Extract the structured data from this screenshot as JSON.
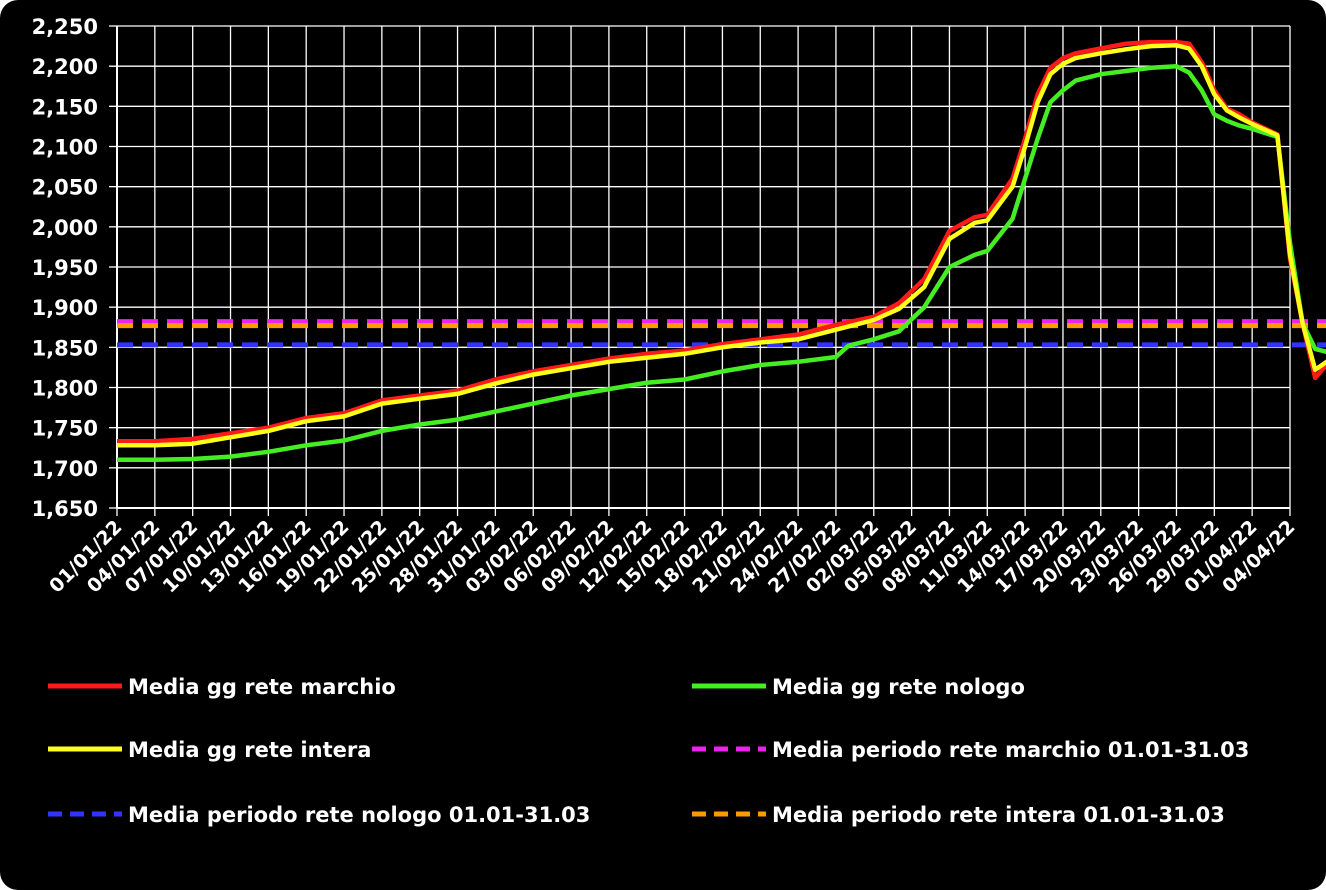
{
  "chart_data": {
    "type": "line",
    "ylim": [
      1650,
      2250
    ],
    "yticks": [
      "1,650",
      "1,700",
      "1,750",
      "1,800",
      "1,850",
      "1,900",
      "1,950",
      "2,000",
      "2,050",
      "2,100",
      "2,150",
      "2,200",
      "2,250"
    ],
    "xticks": [
      "01/01/22",
      "04/01/22",
      "07/01/22",
      "10/01/22",
      "13/01/22",
      "16/01/22",
      "19/01/22",
      "22/01/22",
      "25/01/22",
      "28/01/22",
      "31/01/22",
      "03/02/22",
      "06/02/22",
      "09/02/22",
      "12/02/22",
      "15/02/22",
      "18/02/22",
      "21/02/22",
      "24/02/22",
      "27/02/22",
      "02/03/22",
      "05/03/22",
      "08/03/22",
      "11/03/22",
      "14/03/22",
      "17/03/22",
      "20/03/22",
      "23/03/22",
      "26/03/22",
      "29/03/22",
      "01/04/22",
      "04/04/22"
    ],
    "grid": true,
    "legend_position": "bottom",
    "series": [
      {
        "name": "Media gg rete marchio",
        "color": "#ff1a1a",
        "style": "solid",
        "points": [
          [
            0,
            1733
          ],
          [
            3,
            1733
          ],
          [
            6,
            1736
          ],
          [
            9,
            1743
          ],
          [
            12,
            1750
          ],
          [
            15,
            1762
          ],
          [
            18,
            1768
          ],
          [
            21,
            1784
          ],
          [
            24,
            1790
          ],
          [
            27,
            1796
          ],
          [
            30,
            1810
          ],
          [
            33,
            1820
          ],
          [
            36,
            1828
          ],
          [
            39,
            1836
          ],
          [
            42,
            1842
          ],
          [
            45,
            1846
          ],
          [
            48,
            1854
          ],
          [
            51,
            1860
          ],
          [
            54,
            1866
          ],
          [
            57,
            1878
          ],
          [
            60,
            1888
          ],
          [
            62,
            1905
          ],
          [
            64,
            1935
          ],
          [
            66,
            1995
          ],
          [
            68,
            2012
          ],
          [
            69,
            2015
          ],
          [
            71,
            2060
          ],
          [
            72,
            2110
          ],
          [
            73,
            2165
          ],
          [
            74,
            2198
          ],
          [
            75,
            2210
          ],
          [
            76,
            2216
          ],
          [
            78,
            2222
          ],
          [
            80,
            2228
          ],
          [
            82,
            2230
          ],
          [
            84,
            2230
          ],
          [
            85,
            2228
          ],
          [
            86,
            2205
          ],
          [
            87,
            2170
          ],
          [
            88,
            2147
          ],
          [
            89,
            2140
          ],
          [
            90,
            2130
          ],
          [
            92,
            2115
          ],
          [
            93,
            1960
          ],
          [
            94,
            1880
          ],
          [
            95,
            1812
          ],
          [
            96,
            1830
          ],
          [
            97,
            1840
          ],
          [
            98,
            1842
          ],
          [
            100,
            1836
          ],
          [
            101,
            1835
          ],
          [
            102,
            1838
          ],
          [
            103,
            1837
          ],
          [
            104,
            1832
          ],
          [
            105,
            1825
          ]
        ]
      },
      {
        "name": "Media gg rete nologo",
        "color": "#44ee22",
        "style": "solid",
        "points": [
          [
            0,
            1710
          ],
          [
            3,
            1710
          ],
          [
            6,
            1711
          ],
          [
            9,
            1714
          ],
          [
            12,
            1720
          ],
          [
            15,
            1728
          ],
          [
            18,
            1734
          ],
          [
            21,
            1746
          ],
          [
            24,
            1754
          ],
          [
            27,
            1760
          ],
          [
            30,
            1770
          ],
          [
            33,
            1780
          ],
          [
            36,
            1790
          ],
          [
            39,
            1798
          ],
          [
            42,
            1806
          ],
          [
            45,
            1810
          ],
          [
            48,
            1820
          ],
          [
            51,
            1828
          ],
          [
            54,
            1832
          ],
          [
            57,
            1838
          ],
          [
            58,
            1852
          ],
          [
            60,
            1860
          ],
          [
            62,
            1870
          ],
          [
            64,
            1900
          ],
          [
            66,
            1950
          ],
          [
            68,
            1965
          ],
          [
            69,
            1970
          ],
          [
            71,
            2010
          ],
          [
            72,
            2060
          ],
          [
            73,
            2110
          ],
          [
            74,
            2155
          ],
          [
            75,
            2170
          ],
          [
            76,
            2182
          ],
          [
            78,
            2190
          ],
          [
            80,
            2194
          ],
          [
            82,
            2198
          ],
          [
            84,
            2200
          ],
          [
            85,
            2192
          ],
          [
            86,
            2170
          ],
          [
            87,
            2140
          ],
          [
            88,
            2132
          ],
          [
            89,
            2126
          ],
          [
            90,
            2122
          ],
          [
            92,
            2112
          ],
          [
            93,
            1980
          ],
          [
            94,
            1880
          ],
          [
            95,
            1848
          ],
          [
            96,
            1844
          ],
          [
            97,
            1842
          ],
          [
            98,
            1840
          ],
          [
            100,
            1835
          ],
          [
            101,
            1834
          ],
          [
            102,
            1835
          ],
          [
            103,
            1834
          ],
          [
            104,
            1830
          ],
          [
            105,
            1824
          ]
        ]
      },
      {
        "name": "Media gg rete intera",
        "color": "#ffff1a",
        "style": "solid",
        "points": [
          [
            0,
            1728
          ],
          [
            3,
            1728
          ],
          [
            6,
            1730
          ],
          [
            9,
            1738
          ],
          [
            12,
            1746
          ],
          [
            15,
            1758
          ],
          [
            18,
            1764
          ],
          [
            21,
            1780
          ],
          [
            24,
            1786
          ],
          [
            27,
            1792
          ],
          [
            30,
            1805
          ],
          [
            33,
            1816
          ],
          [
            36,
            1824
          ],
          [
            39,
            1832
          ],
          [
            42,
            1837
          ],
          [
            45,
            1842
          ],
          [
            48,
            1850
          ],
          [
            51,
            1856
          ],
          [
            54,
            1860
          ],
          [
            57,
            1872
          ],
          [
            60,
            1884
          ],
          [
            62,
            1898
          ],
          [
            64,
            1925
          ],
          [
            66,
            1985
          ],
          [
            68,
            2005
          ],
          [
            69,
            2008
          ],
          [
            71,
            2050
          ],
          [
            72,
            2100
          ],
          [
            73,
            2155
          ],
          [
            74,
            2190
          ],
          [
            75,
            2203
          ],
          [
            76,
            2210
          ],
          [
            78,
            2216
          ],
          [
            80,
            2221
          ],
          [
            82,
            2225
          ],
          [
            84,
            2226
          ],
          [
            85,
            2222
          ],
          [
            86,
            2200
          ],
          [
            87,
            2165
          ],
          [
            88,
            2145
          ],
          [
            89,
            2136
          ],
          [
            90,
            2128
          ],
          [
            92,
            2114
          ],
          [
            93,
            1965
          ],
          [
            94,
            1880
          ],
          [
            95,
            1822
          ],
          [
            96,
            1833
          ],
          [
            97,
            1840
          ],
          [
            98,
            1841
          ],
          [
            100,
            1835
          ],
          [
            101,
            1834
          ],
          [
            102,
            1837
          ],
          [
            103,
            1836
          ],
          [
            104,
            1831
          ],
          [
            105,
            1824
          ]
        ]
      },
      {
        "name": "Media periodo rete marchio 01.01-31.03",
        "color": "#ee22ee",
        "style": "dashed",
        "value": 1882
      },
      {
        "name": "Media periodo rete nologo 01.01-31.03",
        "color": "#3333ff",
        "style": "dashed",
        "value": 1853
      },
      {
        "name": "Media periodo rete intera 01.01-31.03",
        "color": "#ff9900",
        "style": "dashed",
        "value": 1877
      }
    ]
  }
}
